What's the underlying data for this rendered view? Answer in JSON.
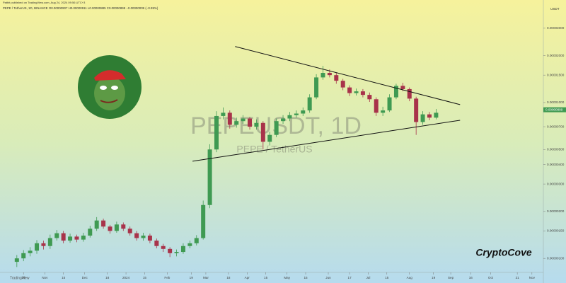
{
  "chart_data": {
    "type": "candlestick",
    "publisher_note": "Patbit published on TradingView.com, Aug 24, 2024 09:56 UTC+3",
    "title": "PEPE / TetherUS, 1D, BINANCE  O0.00000907 H0.00000911 L0.00000885 C0.00000899 −0.00000009 (−0.99%)",
    "watermark": "PEPEUSDT, 1D",
    "watermark_subtitle": "PEPE / TetherUS",
    "brand": "CryptoCove",
    "y_unit": "USDT",
    "footer_logo": "TradingView",
    "ylog": true,
    "up_color": "#3f9a52",
    "down_color": "#a8334a",
    "x": [
      "2023-10-11",
      "2023-10-16",
      "2023-10-21",
      "2023-10-26",
      "2023-10-31",
      "2023-11-05",
      "2023-11-10",
      "2023-11-15",
      "2023-11-20",
      "2023-11-25",
      "2023-11-30",
      "2023-12-05",
      "2023-12-10",
      "2023-12-15",
      "2023-12-20",
      "2023-12-25",
      "2023-12-30",
      "2024-01-04",
      "2024-01-09",
      "2024-01-14",
      "2024-01-19",
      "2024-01-24",
      "2024-01-29",
      "2024-02-03",
      "2024-02-08",
      "2024-02-13",
      "2024-02-18",
      "2024-02-23",
      "2024-02-28",
      "2024-03-04",
      "2024-03-09",
      "2024-03-14",
      "2024-03-19",
      "2024-03-24",
      "2024-03-29",
      "2024-04-03",
      "2024-04-08",
      "2024-04-13",
      "2024-04-18",
      "2024-04-23",
      "2024-04-28",
      "2024-05-03",
      "2024-05-08",
      "2024-05-13",
      "2024-05-18",
      "2024-05-23",
      "2024-05-28",
      "2024-06-02",
      "2024-06-07",
      "2024-06-12",
      "2024-06-17",
      "2024-06-22",
      "2024-06-27",
      "2024-07-02",
      "2024-07-07",
      "2024-07-12",
      "2024-07-17",
      "2024-07-22",
      "2024-07-27",
      "2024-08-01",
      "2024-08-06",
      "2024-08-11",
      "2024-08-16",
      "2024-08-21"
    ],
    "open": [
      9.5e-07,
      1e-06,
      1.08e-06,
      1.12e-06,
      1.25e-06,
      1.2e-06,
      1.35e-06,
      1.45e-06,
      1.3e-06,
      1.38e-06,
      1.32e-06,
      1.4e-06,
      1.55e-06,
      1.75e-06,
      1.6e-06,
      1.5e-06,
      1.65e-06,
      1.55e-06,
      1.45e-06,
      1.35e-06,
      1.4e-06,
      1.3e-06,
      1.2e-06,
      1.15e-06,
      1.08e-06,
      1.1e-06,
      1.2e-06,
      1.25e-06,
      1.35e-06,
      2.2e-06,
      5e-06,
      8.2e-06,
      8.6e-06,
      7.2e-06,
      7.6e-06,
      7.9e-06,
      7e-06,
      7.4e-06,
      5.6e-06,
      6.2e-06,
      7.6e-06,
      7.9e-06,
      8.3e-06,
      8.5e-06,
      8.9e-06,
      1.08e-05,
      1.45e-05,
      1.55e-05,
      1.5e-05,
      1.38e-05,
      1.25e-05,
      1.15e-05,
      1.18e-05,
      1.12e-05,
      1.05e-05,
      8.6e-06,
      8.9e-06,
      1.08e-05,
      1.28e-05,
      1.22e-05,
      1.06e-05,
      7.5e-06,
      8.4e-06,
      8e-06
    ],
    "high": [
      1.05e-06,
      1.13e-06,
      1.18e-06,
      1.31e-06,
      1.3e-06,
      1.42e-06,
      1.52e-06,
      1.5e-06,
      1.44e-06,
      1.42e-06,
      1.46e-06,
      1.62e-06,
      1.84e-06,
      1.8e-06,
      1.64e-06,
      1.72e-06,
      1.7e-06,
      1.6e-06,
      1.5e-06,
      1.46e-06,
      1.44e-06,
      1.34e-06,
      1.24e-06,
      1.18e-06,
      1.14e-06,
      1.25e-06,
      1.3e-06,
      1.41e-06,
      2.35e-06,
      5.4e-06,
      8.8e-06,
      9.3e-06,
      8.9e-06,
      8e-06,
      8.3e-06,
      8.1e-06,
      7.8e-06,
      7.6e-06,
      6.5e-06,
      7.9e-06,
      8.3e-06,
      8.7e-06,
      8.9e-06,
      9.3e-06,
      1.13e-05,
      1.52e-05,
      1.72e-05,
      1.63e-05,
      1.55e-05,
      1.42e-05,
      1.29e-05,
      1.23e-05,
      1.22e-05,
      1.16e-05,
      1.08e-05,
      9.4e-06,
      1.13e-05,
      1.32e-05,
      1.34e-05,
      1.25e-05,
      1.09e-05,
      8.8e-06,
      8.7e-06,
      9.1e-06
    ],
    "low": [
      8.8e-07,
      9.6e-07,
      1.03e-06,
      1.07e-06,
      1.14e-06,
      1.15e-06,
      1.3e-06,
      1.25e-06,
      1.26e-06,
      1.27e-06,
      1.28e-06,
      1.36e-06,
      1.5e-06,
      1.55e-06,
      1.44e-06,
      1.46e-06,
      1.5e-06,
      1.4e-06,
      1.3e-06,
      1.3e-06,
      1.25e-06,
      1.16e-06,
      1.1e-06,
      1.02e-06,
      1.03e-06,
      1.07e-06,
      1.16e-06,
      1.21e-06,
      1.32e-06,
      2.1e-06,
      4.8e-06,
      7.8e-06,
      6.8e-06,
      6.9e-06,
      7.3e-06,
      6.7e-06,
      6.7e-06,
      5e-06,
      5.3e-06,
      6e-06,
      7.3e-06,
      7.6e-06,
      8e-06,
      8.2e-06,
      8.6e-06,
      1.05e-05,
      1.4e-05,
      1.45e-05,
      1.32e-05,
      1.2e-05,
      1.1e-05,
      1.11e-05,
      1.08e-05,
      1.01e-05,
      8.2e-06,
      8.2e-06,
      8.7e-06,
      1.05e-05,
      1.18e-05,
      1.02e-05,
      6.2e-06,
      7.2e-06,
      7.7e-06,
      7.8e-06
    ],
    "close": [
      1e-06,
      1.08e-06,
      1.12e-06,
      1.25e-06,
      1.2e-06,
      1.35e-06,
      1.45e-06,
      1.3e-06,
      1.38e-06,
      1.32e-06,
      1.4e-06,
      1.55e-06,
      1.75e-06,
      1.6e-06,
      1.5e-06,
      1.65e-06,
      1.55e-06,
      1.45e-06,
      1.35e-06,
      1.4e-06,
      1.3e-06,
      1.2e-06,
      1.15e-06,
      1.08e-06,
      1.1e-06,
      1.2e-06,
      1.25e-06,
      1.35e-06,
      2.2e-06,
      5e-06,
      8.2e-06,
      8.6e-06,
      7.2e-06,
      7.6e-06,
      7.9e-06,
      7e-06,
      7.4e-06,
      5.6e-06,
      6.2e-06,
      7.6e-06,
      7.9e-06,
      8.3e-06,
      8.5e-06,
      8.9e-06,
      1.08e-05,
      1.45e-05,
      1.55e-05,
      1.5e-05,
      1.38e-05,
      1.25e-05,
      1.15e-05,
      1.18e-05,
      1.12e-05,
      1.05e-05,
      8.6e-06,
      8.9e-06,
      1.08e-05,
      1.28e-05,
      1.22e-05,
      1.06e-05,
      7.5e-06,
      8.4e-06,
      8e-06,
      8.6e-06
    ],
    "trendlines": [
      {
        "x": [
          "2024-03-23",
          "2024-09-08"
        ],
        "y": [
          2.29e-05,
          9.7e-06
        ]
      },
      {
        "x": [
          "2024-02-20",
          "2024-09-08"
        ],
        "y": [
          4.2e-06,
          7.7e-06
        ]
      }
    ],
    "last_price": {
      "value": 8.99e-06,
      "label": "0.00000899"
    },
    "xlim": [
      "2023-10-01",
      "2024-11-08"
    ],
    "xticks": [
      {
        "value": "2023-10-16",
        "label": "16"
      },
      {
        "value": "2023-11-01",
        "label": "Nov"
      },
      {
        "value": "2023-11-15",
        "label": "15"
      },
      {
        "value": "2023-12-01",
        "label": "Dec"
      },
      {
        "value": "2023-12-18",
        "label": "18"
      },
      {
        "value": "2024-01-01",
        "label": "2024"
      },
      {
        "value": "2024-01-15",
        "label": "15"
      },
      {
        "value": "2024-02-01",
        "label": "Feb"
      },
      {
        "value": "2024-02-19",
        "label": "19"
      },
      {
        "value": "2024-03-01",
        "label": "Mar"
      },
      {
        "value": "2024-03-18",
        "label": "18"
      },
      {
        "value": "2024-04-01",
        "label": "Apr"
      },
      {
        "value": "2024-04-15",
        "label": "15"
      },
      {
        "value": "2024-05-01",
        "label": "May"
      },
      {
        "value": "2024-05-15",
        "label": "15"
      },
      {
        "value": "2024-06-01",
        "label": "Jun"
      },
      {
        "value": "2024-06-17",
        "label": "17"
      },
      {
        "value": "2024-07-01",
        "label": "Jul"
      },
      {
        "value": "2024-07-15",
        "label": "15"
      },
      {
        "value": "2024-08-01",
        "label": "Aug"
      },
      {
        "value": "2024-08-19",
        "label": "19"
      },
      {
        "value": "2024-09-01",
        "label": "Sep"
      },
      {
        "value": "2024-09-16",
        "label": "16"
      },
      {
        "value": "2024-10-01",
        "label": "Oct"
      },
      {
        "value": "2024-10-21",
        "label": "21"
      },
      {
        "value": "2024-11-01",
        "label": "Nov"
      }
    ],
    "ylim": [
      8.3e-07,
      4.1e-05
    ],
    "yticks": [
      {
        "value": 1e-06,
        "label": "0.00000100"
      },
      {
        "value": 1.5e-06,
        "label": "0.00000150"
      },
      {
        "value": 2e-06,
        "label": "0.00000200"
      },
      {
        "value": 3e-06,
        "label": "0.00000300"
      },
      {
        "value": 4e-06,
        "label": "0.00000400"
      },
      {
        "value": 5e-06,
        "label": "0.00000500"
      },
      {
        "value": 7e-06,
        "label": "0.00000700"
      },
      {
        "value": 1e-05,
        "label": "0.00001000"
      },
      {
        "value": 1.5e-05,
        "label": "0.00001500"
      },
      {
        "value": 2e-05,
        "label": "0.00002000"
      },
      {
        "value": 3e-05,
        "label": "0.00003000"
      }
    ]
  }
}
